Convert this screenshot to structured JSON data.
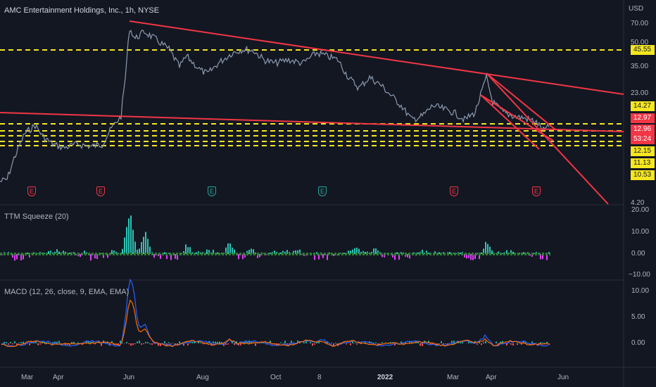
{
  "chart": {
    "title": "AMC Entertainment Holdings, Inc., 1h, NYSE",
    "currency": "USD",
    "price_ticks": [
      "70.00",
      "50.00",
      "35.00",
      "23.00",
      "4.20"
    ],
    "price_tags": [
      {
        "label": "45.55",
        "style": "yellow"
      },
      {
        "label": "14.27",
        "style": "yellow"
      },
      {
        "label": "12.97",
        "style": "red"
      },
      {
        "label": "12.96",
        "style": "red"
      },
      {
        "label": "53:24",
        "style": "red"
      },
      {
        "label": "12.15",
        "style": "yellow"
      },
      {
        "label": "11.13",
        "style": "yellow"
      },
      {
        "label": "10.53",
        "style": "yellow"
      }
    ],
    "earnings_markers": [
      {
        "label": "E",
        "color": "red"
      },
      {
        "label": "E",
        "color": "red"
      },
      {
        "label": "E",
        "color": "teal"
      },
      {
        "label": "E",
        "color": "teal"
      },
      {
        "label": "E",
        "color": "red"
      },
      {
        "label": "E",
        "color": "red"
      }
    ],
    "colors": {
      "background": "#131722",
      "trendline": "#f23645",
      "level": "#f5e61f",
      "up": "#26a69a",
      "down": "#ef5350"
    }
  },
  "squeeze": {
    "title": "TTM Squeeze (20)",
    "ticks": [
      "20.00",
      "10.00",
      "0.00",
      "−10.00"
    ],
    "colors": {
      "pos": "#2ec4b6",
      "neg": "#e040fb",
      "dots": "#2e7d32"
    }
  },
  "macd": {
    "title": "MACD (12, 26, close, 9, EMA, EMA)",
    "ticks": [
      "10.00",
      "5.00",
      "0.00"
    ],
    "colors": {
      "macd": "#2962ff",
      "signal": "#ff6d00"
    }
  },
  "time_axis": {
    "labels": [
      "Mar",
      "Apr",
      "Jun",
      "Aug",
      "Oct",
      "8",
      "2022",
      "Mar",
      "Apr",
      "Jun"
    ]
  }
}
